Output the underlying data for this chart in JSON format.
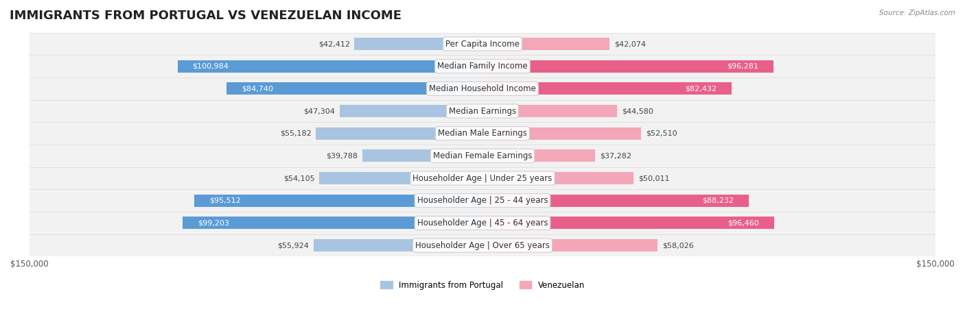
{
  "title": "IMMIGRANTS FROM PORTUGAL VS VENEZUELAN INCOME",
  "source": "Source: ZipAtlas.com",
  "categories": [
    "Per Capita Income",
    "Median Family Income",
    "Median Household Income",
    "Median Earnings",
    "Median Male Earnings",
    "Median Female Earnings",
    "Householder Age | Under 25 years",
    "Householder Age | 25 - 44 years",
    "Householder Age | 45 - 64 years",
    "Householder Age | Over 65 years"
  ],
  "portugal_values": [
    42412,
    100984,
    84740,
    47304,
    55182,
    39788,
    54105,
    95512,
    99203,
    55924
  ],
  "venezuelan_values": [
    42074,
    96281,
    82432,
    44580,
    52510,
    37282,
    50011,
    88232,
    96460,
    58026
  ],
  "portugal_color_light": "#a8c4e0",
  "portugal_color_dark": "#5b9bd5",
  "venezuelan_color_light": "#f4a7b9",
  "venezuelan_color_dark": "#e8608a",
  "max_value": 150000,
  "background_color": "#ffffff",
  "row_bg_color": "#f0f0f0",
  "title_fontsize": 13,
  "label_fontsize": 8.5,
  "value_fontsize": 8,
  "legend_label_portugal": "Immigrants from Portugal",
  "legend_label_venezuelan": "Venezuelan"
}
